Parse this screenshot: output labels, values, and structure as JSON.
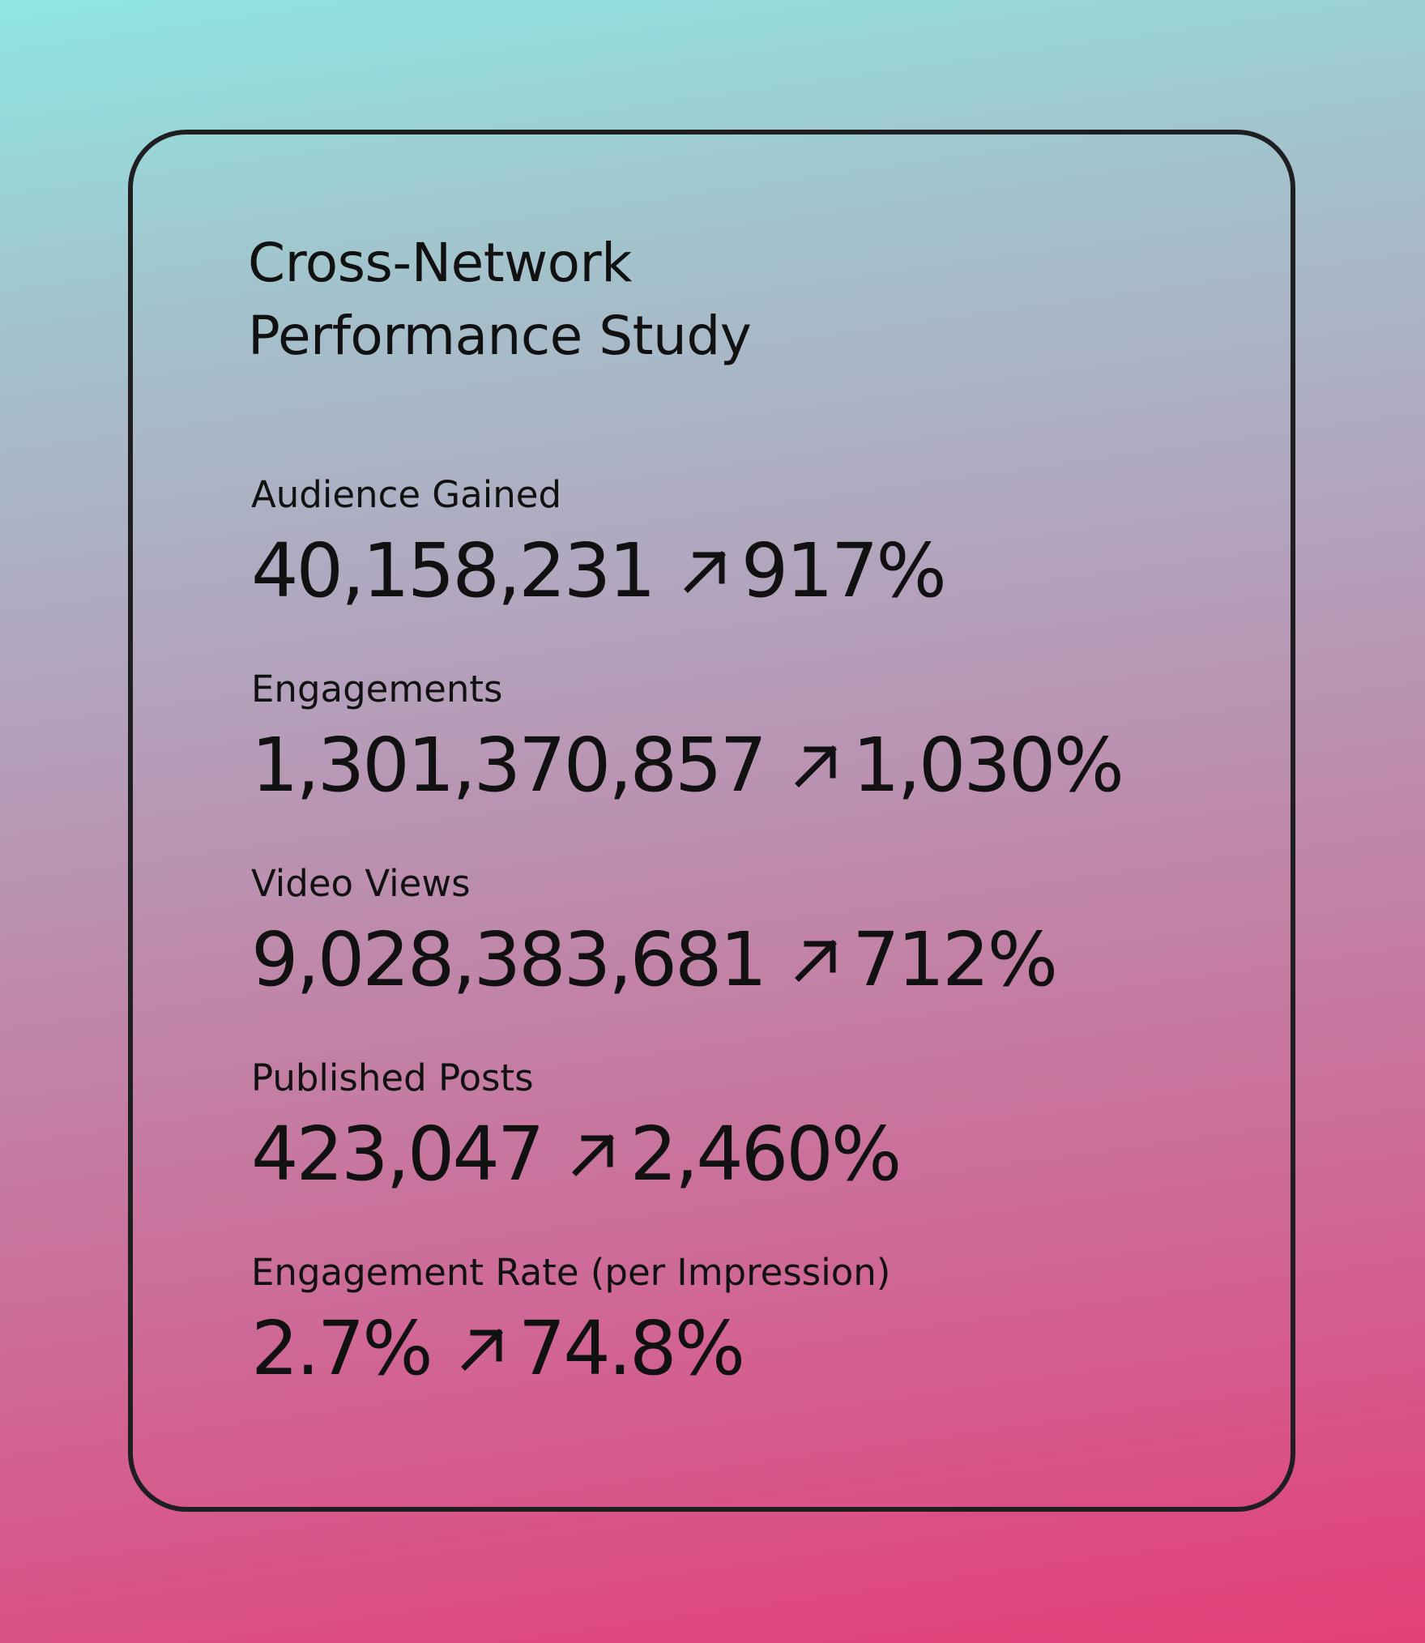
{
  "card": {
    "title_line1": "Cross-Network",
    "title_line2": "Performance Study"
  },
  "metrics": [
    {
      "label": "Audience Gained",
      "value": "40,158,231",
      "change": "917%",
      "change_icon": "arrow-up-right-icon"
    },
    {
      "label": "Engagements",
      "value": "1,301,370,857",
      "change": "1,030%",
      "change_icon": "arrow-up-right-icon"
    },
    {
      "label": "Video Views",
      "value": "9,028,383,681",
      "change": "712%",
      "change_icon": "arrow-up-right-icon"
    },
    {
      "label": "Published Posts",
      "value": "423,047",
      "change": "2,460%",
      "change_icon": "arrow-up-right-icon"
    },
    {
      "label": "Engagement Rate (per Impression)",
      "value": "2.7%",
      "change": "74.8%",
      "change_icon": "arrow-up-right-icon"
    }
  ],
  "colors": {
    "gradient_top": "#8fe6e2",
    "gradient_bottom": "#e33f78",
    "text": "#111111",
    "card_border": "#1f1f22"
  }
}
